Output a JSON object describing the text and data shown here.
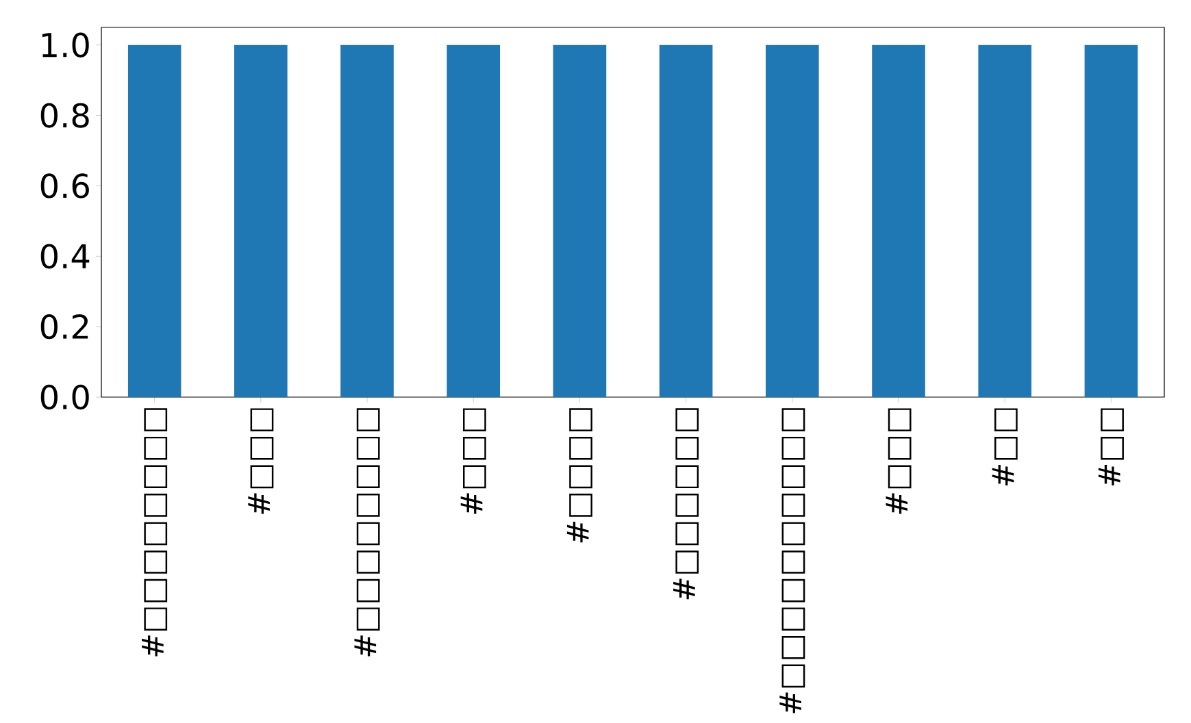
{
  "chart_data": {
    "type": "bar",
    "categories": [
      "#□□□□□□□□",
      "#□□□",
      "#□□□□□□□□",
      "#□□□",
      "#□□□□",
      "#□□□□□□",
      "#□□□□□□□□□□",
      "#□□□",
      "#□□",
      "#□□"
    ],
    "values": [
      1,
      1,
      1,
      1,
      1,
      1,
      1,
      1,
      1,
      1
    ],
    "color": "#1f77b4",
    "ylim": [
      0,
      1.05
    ],
    "yticks": [
      {
        "value": 0,
        "label": "0.0"
      },
      {
        "value": 0.2,
        "label": "0.2"
      },
      {
        "value": 0.4,
        "label": "0.4"
      },
      {
        "value": 0.6,
        "label": "0.6"
      },
      {
        "value": 0.8,
        "label": "0.8"
      },
      {
        "value": 1.0,
        "label": "1.0"
      }
    ]
  }
}
